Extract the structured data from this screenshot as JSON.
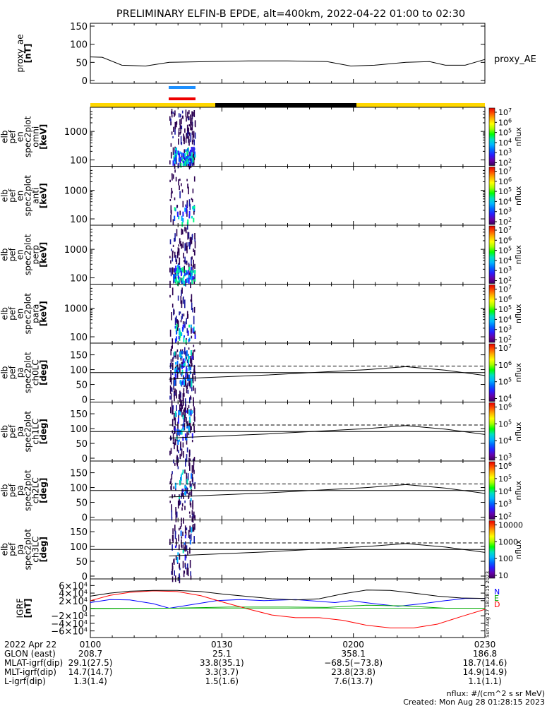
{
  "chart_data": {
    "type": "multi-panel",
    "title": "PRELIMINARY ELFIN-B EPDE, alt=400km, 2022-04-22 01:00 to 02:30",
    "panels": [
      {
        "id": "proxy_ae",
        "type": "line",
        "ylabel": [
          "proxy_ae",
          "[nT]"
        ],
        "ylim": [
          0,
          150
        ],
        "yticks": [
          0,
          50,
          100,
          150
        ],
        "legend": "proxy_AE",
        "series": [
          {
            "name": "proxy_AE",
            "x": [
              0,
              0.03,
              0.08,
              0.14,
              0.2,
              0.3,
              0.4,
              0.5,
              0.6,
              0.66,
              0.72,
              0.8,
              0.86,
              0.9,
              0.95,
              1.0
            ],
            "y": [
              65,
              64,
              42,
              40,
              50,
              52,
              54,
              54,
              52,
              40,
              42,
              50,
              52,
              42,
              42,
              58
            ]
          }
        ]
      },
      {
        "id": "omni",
        "type": "spectrogram",
        "ylabel": [
          "elb",
          "pef",
          "en",
          "spec2plot",
          "omni",
          "[keV]"
        ],
        "yscale": "log",
        "ylim": [
          60,
          7000
        ],
        "ytick_labels": [
          "100",
          "1000"
        ],
        "cbar_label": "nflux",
        "cbar_ticks": [
          "10<sup>2</sup>",
          "10<sup>3</sup>",
          "10<sup>4</sup>",
          "10<sup>5</sup>",
          "10<sup>6</sup>",
          "10<sup>7</sup>"
        ]
      },
      {
        "id": "anti",
        "type": "spectrogram",
        "ylabel": [
          "elb",
          "pef",
          "en",
          "spec2plot",
          "anti",
          "[keV]"
        ],
        "yscale": "log",
        "ylim": [
          60,
          7000
        ],
        "ytick_labels": [
          "100",
          "1000"
        ],
        "cbar_label": "nflux",
        "cbar_ticks": [
          "10<sup>2</sup>",
          "10<sup>3</sup>",
          "10<sup>4</sup>",
          "10<sup>5</sup>",
          "10<sup>6</sup>",
          "10<sup>7</sup>"
        ]
      },
      {
        "id": "perp",
        "type": "spectrogram",
        "ylabel": [
          "elb",
          "pef",
          "en",
          "spec2plot",
          "perp",
          "[keV]"
        ],
        "yscale": "log",
        "ylim": [
          60,
          7000
        ],
        "ytick_labels": [
          "100",
          "1000"
        ],
        "cbar_label": "nflux",
        "cbar_ticks": [
          "10<sup>2</sup>",
          "10<sup>3</sup>",
          "10<sup>4</sup>",
          "10<sup>5</sup>",
          "10<sup>6</sup>",
          "10<sup>7</sup>"
        ]
      },
      {
        "id": "para",
        "type": "spectrogram",
        "ylabel": [
          "elb",
          "pef",
          "en",
          "spec2plot",
          "para",
          "[keV]"
        ],
        "yscale": "log",
        "ylim": [
          60,
          7000
        ],
        "ytick_labels": [
          "100",
          "1000"
        ],
        "cbar_label": "nflux",
        "cbar_ticks": [
          "10<sup>2</sup>",
          "10<sup>3</sup>",
          "10<sup>4</sup>",
          "10<sup>5</sup>",
          "10<sup>6</sup>",
          "10<sup>7</sup>"
        ]
      },
      {
        "id": "ch0LC",
        "type": "spectrogram",
        "ylabel": [
          "elb",
          "pef",
          "pa",
          "spec2plot",
          "ch0LC",
          "[deg]"
        ],
        "ylim": [
          0,
          180
        ],
        "ytick_labels": [
          "0",
          "50",
          "100",
          "150"
        ],
        "cbar_label": "nflux",
        "cbar_ticks": [
          "10<sup>4</sup>",
          "10<sup>5</sup>",
          "10<sup>6</sup>",
          "10<sup>7</sup>"
        ]
      },
      {
        "id": "ch1LC",
        "type": "spectrogram",
        "ylabel": [
          "elb",
          "pef",
          "pa",
          "spec2plot",
          "ch1LC",
          "[deg]"
        ],
        "ylim": [
          0,
          180
        ],
        "ytick_labels": [
          "0",
          "50",
          "100",
          "150"
        ],
        "cbar_label": "nflux",
        "cbar_ticks": [
          "10<sup>3</sup>",
          "10<sup>4</sup>",
          "10<sup>5</sup>",
          "10<sup>6</sup>"
        ]
      },
      {
        "id": "ch2LC",
        "type": "spectrogram",
        "ylabel": [
          "elb",
          "pef",
          "pa",
          "spec2plot",
          "ch2LC",
          "[deg]"
        ],
        "ylim": [
          0,
          180
        ],
        "ytick_labels": [
          "0",
          "50",
          "100",
          "150"
        ],
        "cbar_label": "nflux",
        "cbar_ticks": [
          "10<sup>2</sup>",
          "10<sup>3</sup>",
          "10<sup>4</sup>",
          "10<sup>5</sup>",
          "10<sup>6</sup>"
        ]
      },
      {
        "id": "ch3LC",
        "type": "spectrogram",
        "ylabel": [
          "elb",
          "pef",
          "pa",
          "spec2plot",
          "ch3LC",
          "[deg]"
        ],
        "ylim": [
          0,
          180
        ],
        "ytick_labels": [
          "0",
          "50",
          "100",
          "150"
        ],
        "cbar_label": "nflux",
        "cbar_ticks": [
          "10",
          "100",
          "1000",
          "10000"
        ]
      },
      {
        "id": "igrf",
        "type": "line",
        "ylabel": [
          "IGRF",
          "[nT]"
        ],
        "ylim": [
          -70000,
          70000
        ],
        "ytick_labels": [
          "−6×10<sup>4</sup>",
          "−4×10<sup>4</sup>",
          "−2×10<sup>4</sup>",
          "0",
          "2×10<sup>4</sup>",
          "4×10<sup>4</sup>",
          "6×10<sup>4</sup>"
        ],
        "ytick_values": [
          -60000,
          -40000,
          -20000,
          0,
          20000,
          40000,
          60000
        ],
        "legend": [
          "N",
          "E",
          "D"
        ],
        "side_text": "Sun Aug 27 18:28:15 2023",
        "series": [
          {
            "name": "N",
            "color": "#0000ff",
            "x": [
              0,
              0.05,
              0.1,
              0.16,
              0.2,
              0.26,
              0.32,
              0.38,
              0.44,
              0.52,
              0.62,
              0.66,
              0.72,
              0.78,
              0.84,
              0.9,
              0.95,
              1.0
            ],
            "y": [
              15000,
              23000,
              22000,
              12000,
              0,
              10000,
              20000,
              23000,
              20000,
              23000,
              15000,
              20000,
              12000,
              5000,
              12000,
              20000,
              26000,
              26000
            ]
          },
          {
            "name": "E",
            "color": "#00aa00",
            "x": [
              0,
              0.2,
              0.35,
              0.5,
              0.6,
              0.7,
              0.8,
              0.9,
              1.0
            ],
            "y": [
              -1000,
              0,
              3000,
              3000,
              2000,
              8000,
              6000,
              0,
              0
            ]
          },
          {
            "name": "D",
            "color": "#ff0000",
            "x": [
              0,
              0.05,
              0.1,
              0.16,
              0.22,
              0.28,
              0.34,
              0.4,
              0.46,
              0.52,
              0.58,
              0.64,
              0.7,
              0.76,
              0.82,
              0.88,
              0.94,
              1.0
            ],
            "y": [
              20000,
              34000,
              42000,
              46000,
              44000,
              33000,
              15000,
              -2000,
              -18000,
              -25000,
              -25000,
              -32000,
              -45000,
              -52000,
              -52000,
              -42000,
              -22000,
              -3000
            ]
          },
          {
            "name": "total",
            "color": "#000000",
            "x": [
              0,
              0.05,
              0.1,
              0.16,
              0.22,
              0.28,
              0.34,
              0.4,
              0.46,
              0.52,
              0.58,
              0.64,
              0.7,
              0.76,
              0.82,
              0.88,
              0.94,
              1.0
            ],
            "y": [
              32000,
              40000,
              45000,
              47000,
              47000,
              44000,
              37000,
              31000,
              25000,
              22000,
              25000,
              38000,
              48000,
              47000,
              40000,
              32000,
              27000,
              26000
            ]
          }
        ]
      }
    ],
    "time_axis": {
      "labels": [
        "2022 Apr 22",
        "GLON (east)",
        "MLAT-igrf(dip)",
        "MLT-igrf(dip)",
        "L-igrf(dip)"
      ],
      "ticks": [
        {
          "values": [
            "0100",
            "208.7",
            "29.1(27.5)",
            "14.7(14.7)",
            "1.3(1.4)"
          ]
        },
        {
          "values": [
            "0130",
            "25.1",
            "33.8(35.1)",
            "3.3(3.7)",
            "1.5(1.6)"
          ]
        },
        {
          "values": [
            "0200",
            "358.1",
            "−68.5(−73.8)",
            "23.8(23.8)",
            "7.6(13.7)"
          ]
        },
        {
          "values": [
            "0230",
            "186.8",
            "18.7(14.6)",
            "14.9(14.9)",
            "1.1(1.1)"
          ]
        }
      ]
    },
    "footer": [
      "nflux: #/(cm^2 s sr MeV)",
      "Created: Mon Aug 28 01:28:15 2023"
    ]
  }
}
